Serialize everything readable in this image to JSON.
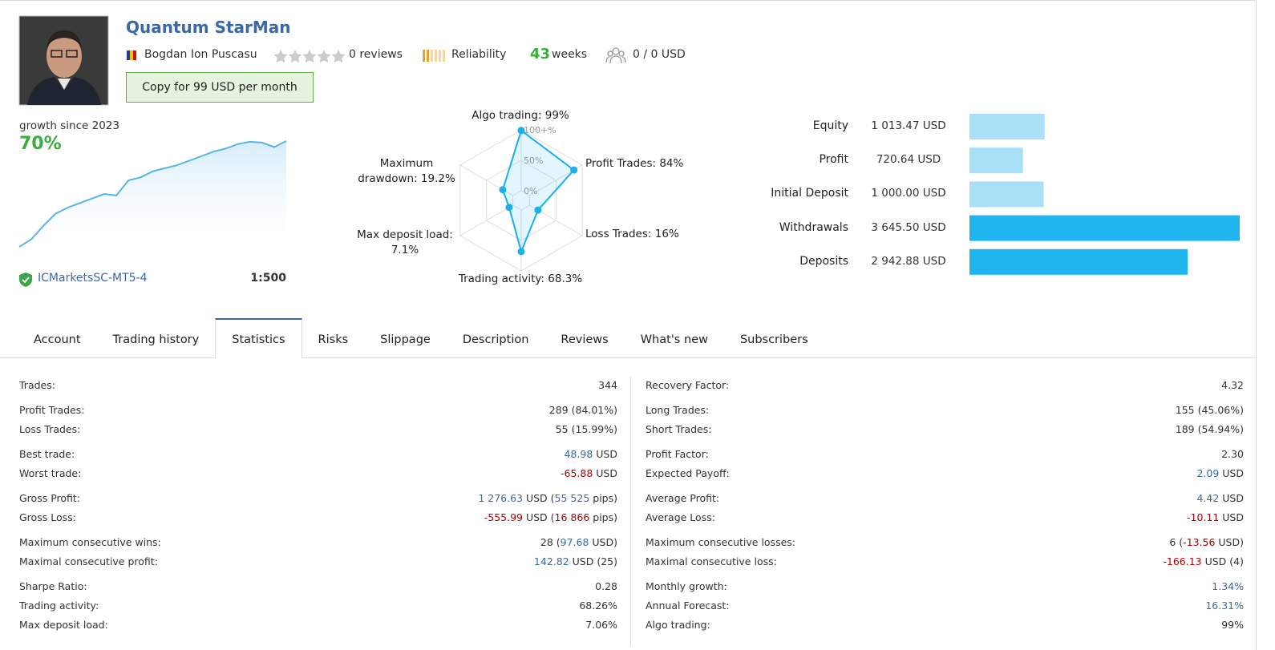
{
  "header": {
    "title": "Quantum StarMan",
    "author": "Bogdan Ion Puscasu",
    "reviews": "0 reviews",
    "reliability": "Reliability",
    "weeks_value": 43,
    "weeks_label": "weeks",
    "subscribers": "0 / 0 USD",
    "copy_button": "Copy for 99 USD per month"
  },
  "growth": {
    "label": "growth since 2023",
    "value": "70%",
    "broker": "ICMarketsSC-MT5-4",
    "leverage": "1:500"
  },
  "chart_data": [
    {
      "type": "line",
      "color": "#5ab4e5",
      "values": [
        0,
        5,
        14,
        22,
        26,
        29,
        32,
        35,
        34,
        44,
        46,
        50,
        52,
        54,
        57,
        60,
        63,
        65,
        68,
        69.5,
        69,
        66,
        70
      ]
    },
    {
      "type": "radar",
      "color": "#1ab0ec",
      "grid": true,
      "categories": [
        "Algo trading: 99%",
        "Profit Trades: 84%",
        "Loss Trades: 16%",
        "Trading activity: 68.3%",
        "Max deposit load: 7.1%",
        "Maximum drawdown: 19.2%"
      ],
      "values": [
        99,
        84,
        16,
        68.3,
        7.1,
        19.2
      ],
      "rlim": [
        0,
        100
      ],
      "rticks": [
        {
          "value": 0,
          "label": "0%"
        },
        {
          "value": 50,
          "label": "50%"
        },
        {
          "value": 100,
          "label": "100+%"
        }
      ]
    },
    {
      "type": "bar",
      "orientation": "horizontal",
      "categories": [
        "Equity",
        "Profit",
        "Initial Deposit",
        "Withdrawals",
        "Deposits"
      ],
      "values": [
        1013.47,
        720.64,
        1000.0,
        3645.5,
        2942.88
      ],
      "value_labels": [
        "1 013.47 USD",
        "720.64 USD",
        "1 000.00 USD",
        "3 645.50 USD",
        "2 942.88 USD"
      ],
      "colors": [
        "#a8e1f7",
        "#a8e1f7",
        "#a8e1f7",
        "#1fb6ef",
        "#1fb6ef"
      ]
    }
  ],
  "tabs": {
    "items": [
      "Account",
      "Trading history",
      "Statistics",
      "Risks",
      "Slippage",
      "Description",
      "Reviews",
      "What's new",
      "Subscribers"
    ],
    "active": 2
  },
  "statistics": {
    "left": [
      [
        {
          "label": "Trades:",
          "value": [
            "344"
          ]
        }
      ],
      [
        {
          "label": "Profit Trades:",
          "value": [
            "289 (84.01%)"
          ]
        },
        {
          "label": "Loss Trades:",
          "value": [
            "55 (15.99%)"
          ]
        }
      ],
      [
        {
          "label": "Best trade:",
          "value": [
            {
              "text": "48.98",
              "tone": "pos"
            },
            " USD"
          ]
        },
        {
          "label": "Worst trade:",
          "value": [
            {
              "text": "-65.88",
              "tone": "neg"
            },
            " USD"
          ]
        }
      ],
      [
        {
          "label": "Gross Profit:",
          "value": [
            {
              "text": "1 276.63",
              "tone": "pos"
            },
            " USD (",
            {
              "text": "55 525",
              "tone": "pos"
            },
            " pips)"
          ]
        },
        {
          "label": "Gross Loss:",
          "value": [
            {
              "text": "-555.99",
              "tone": "neg"
            },
            " USD (",
            {
              "text": "16 866",
              "tone": "neg"
            },
            " pips)"
          ]
        }
      ],
      [
        {
          "label": "Maximum consecutive wins:",
          "value": [
            "28 (",
            {
              "text": "97.68",
              "tone": "pos"
            },
            " USD)"
          ]
        },
        {
          "label": "Maximal consecutive profit:",
          "value": [
            {
              "text": "142.82",
              "tone": "pos"
            },
            " USD (25)"
          ]
        }
      ],
      [
        {
          "label": "Sharpe Ratio:",
          "value": [
            "0.28"
          ]
        },
        {
          "label": "Trading activity:",
          "value": [
            "68.26%"
          ]
        },
        {
          "label": "Max deposit load:",
          "value": [
            "7.06%"
          ]
        }
      ]
    ],
    "right": [
      [
        {
          "label": "Recovery Factor:",
          "value": [
            "4.32"
          ]
        }
      ],
      [
        {
          "label": "Long Trades:",
          "value": [
            "155 (45.06%)"
          ]
        },
        {
          "label": "Short Trades:",
          "value": [
            "189 (54.94%)"
          ]
        }
      ],
      [
        {
          "label": "Profit Factor:",
          "value": [
            "2.30"
          ]
        },
        {
          "label": "Expected Payoff:",
          "value": [
            {
              "text": "2.09",
              "tone": "pos"
            },
            " USD"
          ]
        }
      ],
      [
        {
          "label": "Average Profit:",
          "value": [
            {
              "text": "4.42",
              "tone": "pos"
            },
            " USD"
          ]
        },
        {
          "label": "Average Loss:",
          "value": [
            {
              "text": "-10.11",
              "tone": "neg"
            },
            " USD"
          ]
        }
      ],
      [
        {
          "label": "Maximum consecutive losses:",
          "value": [
            "6 (",
            {
              "text": "-13.56",
              "tone": "neg"
            },
            " USD)"
          ]
        },
        {
          "label": "Maximal consecutive loss:",
          "value": [
            {
              "text": "-166.13",
              "tone": "neg"
            },
            " USD (4)"
          ]
        }
      ],
      [
        {
          "label": "Monthly growth:",
          "value": [
            {
              "text": "1.34%",
              "tone": "pos"
            }
          ]
        },
        {
          "label": "Annual Forecast:",
          "value": [
            {
              "text": "16.31%",
              "tone": "pos"
            }
          ]
        },
        {
          "label": "Algo trading:",
          "value": [
            "99%"
          ]
        }
      ]
    ]
  }
}
